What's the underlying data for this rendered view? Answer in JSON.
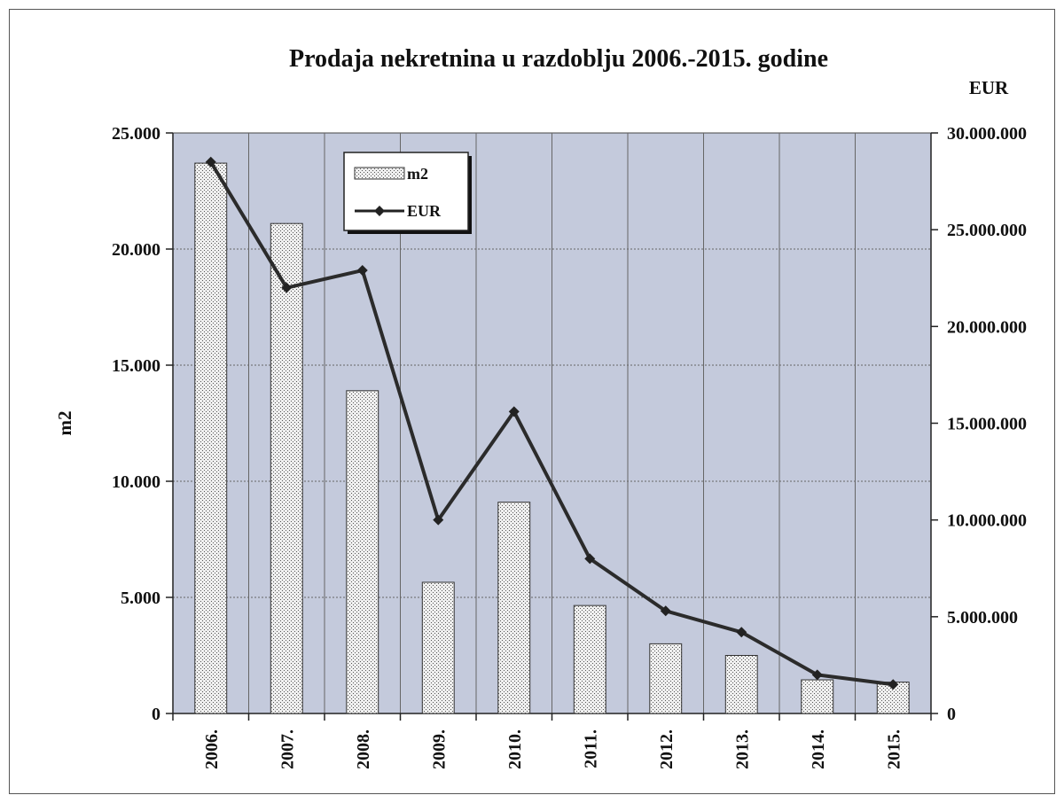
{
  "chart_data": {
    "type": "bar",
    "title": "Prodaja nekretnina u razdoblju 2006.-2015. godine",
    "ylabel": "m2",
    "y2label": "EUR",
    "categories": [
      "2006.",
      "2007.",
      "2008.",
      "2009.",
      "2010.",
      "2011.",
      "2012.",
      "2013.",
      "2014.",
      "2015."
    ],
    "series": [
      {
        "name": "m2",
        "type": "bar",
        "axis": "left",
        "values": [
          23700,
          21100,
          13900,
          5650,
          9100,
          4650,
          3000,
          2500,
          1450,
          1350
        ]
      },
      {
        "name": "EUR",
        "type": "line",
        "axis": "right",
        "values": [
          28500000,
          22000000,
          22900000,
          10000000,
          15600000,
          8000000,
          5300000,
          4200000,
          2000000,
          1500000
        ]
      }
    ],
    "ylim": [
      0,
      25000
    ],
    "y2lim": [
      0,
      30000000
    ],
    "yticks": [
      "0",
      "5.000",
      "10.000",
      "15.000",
      "20.000",
      "25.000"
    ],
    "y2ticks": [
      "0",
      "5.000.000",
      "10.000.000",
      "15.000.000",
      "20.000.000",
      "25.000.000",
      "30.000.000"
    ],
    "grid": true,
    "legend_position": "top-left",
    "colors": {
      "plot_bg": "#c4cadc",
      "bar_fill": "#ececec",
      "line": "#2b2b2b",
      "grid": "#666666"
    }
  }
}
